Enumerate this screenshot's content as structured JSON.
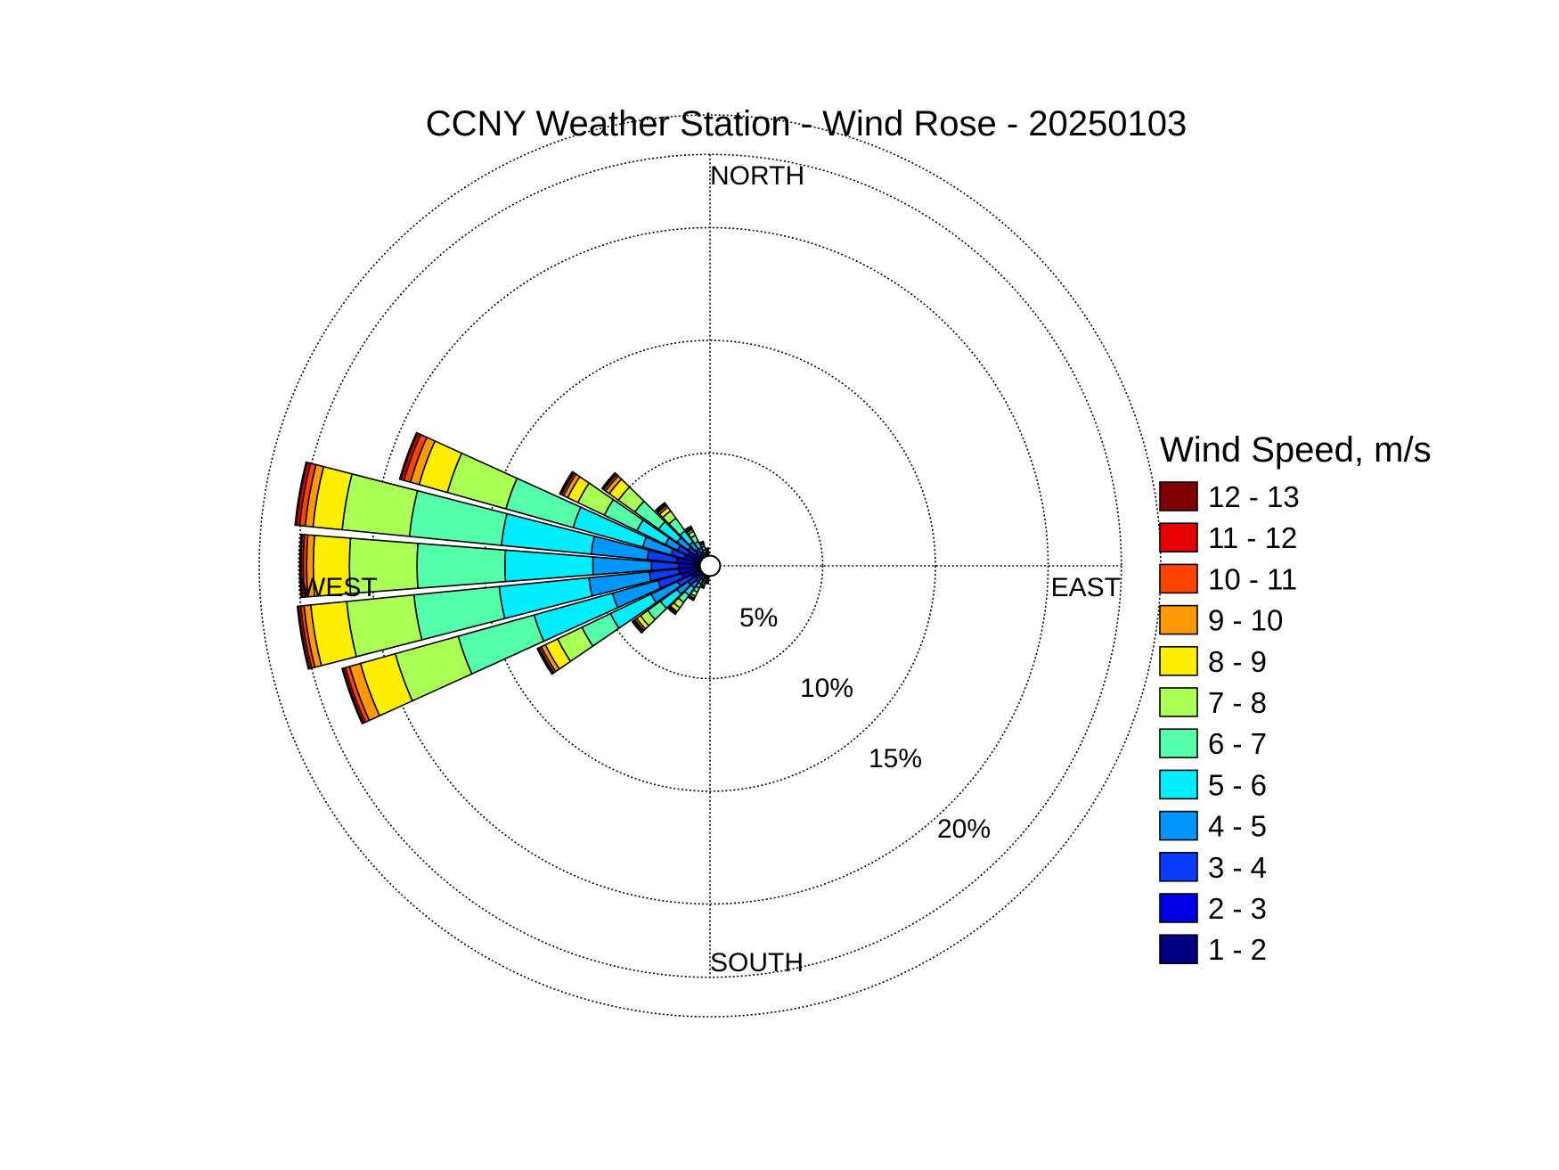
{
  "chart_data": {
    "type": "wind-rose",
    "title": "CCNY Weather Station - Wind Rose - 20250103",
    "direction_labels": {
      "north": "NORTH",
      "south": "SOUTH",
      "east": "EAST",
      "west": "WEST"
    },
    "radial_unit": "percent of time",
    "rings": [
      5,
      10,
      15,
      20
    ],
    "ring_labels": [
      "5%",
      "10%",
      "15%",
      "20%"
    ],
    "rmax": 18.25,
    "calm_radius": 0.45,
    "legend_title": "Wind Speed, m/s",
    "speed_bins": [
      {
        "label": "1 - 2",
        "color": "#000080"
      },
      {
        "label": "2 - 3",
        "color": "#0000e6"
      },
      {
        "label": "3 - 4",
        "color": "#0a3cff"
      },
      {
        "label": "4 - 5",
        "color": "#0096ff"
      },
      {
        "label": "5 - 6",
        "color": "#00eeff"
      },
      {
        "label": "6 - 7",
        "color": "#55ffaa"
      },
      {
        "label": "7 - 8",
        "color": "#aaff55"
      },
      {
        "label": "8 - 9",
        "color": "#ffee00"
      },
      {
        "label": "9 - 10",
        "color": "#ff9900"
      },
      {
        "label": "10 - 11",
        "color": "#ff4400"
      },
      {
        "label": "11 - 12",
        "color": "#e60000"
      },
      {
        "label": "12 - 13",
        "color": "#800000"
      }
    ],
    "sector_width_deg": 10,
    "sectors": [
      {
        "direction_deg": 300,
        "cumulative": [
          0.6,
          1.1,
          1.6,
          2.2,
          3.6,
          5.2,
          6.5,
          7.0,
          7.2,
          7.3,
          7.35,
          7.4
        ]
      },
      {
        "direction_deg": 290,
        "cumulative": [
          0.6,
          1.2,
          1.8,
          3.1,
          6.3,
          9.4,
          12.1,
          13.4,
          13.8,
          14.1,
          14.25,
          14.3
        ]
      },
      {
        "direction_deg": 280,
        "cumulative": [
          0.7,
          1.5,
          2.8,
          5.3,
          9.3,
          13.4,
          16.4,
          17.7,
          18.05,
          18.3,
          18.45,
          18.5
        ]
      },
      {
        "direction_deg": 270,
        "cumulative": [
          0.6,
          1.4,
          2.6,
          5.2,
          9.1,
          13.0,
          16.0,
          17.6,
          17.9,
          18.05,
          18.15,
          18.2
        ]
      },
      {
        "direction_deg": 260,
        "cumulative": [
          0.6,
          1.4,
          2.7,
          5.4,
          9.4,
          13.2,
          16.2,
          17.8,
          18.1,
          18.25,
          18.35,
          18.4
        ]
      },
      {
        "direction_deg": 250,
        "cumulative": [
          0.6,
          1.3,
          2.4,
          4.5,
          8.1,
          11.6,
          14.5,
          16.1,
          16.6,
          16.8,
          16.9,
          16.95
        ]
      },
      {
        "direction_deg": 240,
        "cumulative": [
          0.5,
          0.9,
          1.6,
          2.9,
          4.9,
          6.3,
          7.5,
          8.1,
          8.3,
          8.4,
          8.45,
          8.5
        ]
      },
      {
        "direction_deg": 230,
        "cumulative": [
          0.4,
          0.8,
          1.2,
          1.8,
          2.7,
          3.4,
          3.8,
          4.0,
          4.1,
          4.15,
          4.2,
          4.25
        ]
      },
      {
        "direction_deg": 220,
        "cumulative": [
          0.4,
          0.6,
          0.9,
          1.2,
          1.6,
          2.0,
          2.3,
          2.5,
          2.55,
          2.6,
          2.62,
          2.65
        ]
      },
      {
        "direction_deg": 210,
        "cumulative": [
          0.3,
          0.5,
          0.7,
          0.9,
          1.1,
          1.3,
          1.5,
          1.6,
          1.63,
          1.66,
          1.68,
          1.7
        ]
      },
      {
        "direction_deg": 200,
        "cumulative": [
          0.3,
          0.4,
          0.5,
          0.6,
          0.7,
          0.8,
          0.9,
          0.95,
          0.97,
          0.99,
          1.0,
          1.0
        ]
      },
      {
        "direction_deg": 310,
        "cumulative": [
          0.5,
          0.8,
          1.2,
          1.8,
          2.8,
          4.1,
          5.0,
          5.5,
          5.7,
          5.8,
          5.85,
          5.9
        ]
      },
      {
        "direction_deg": 320,
        "cumulative": [
          0.4,
          0.6,
          0.9,
          1.3,
          1.9,
          2.6,
          3.0,
          3.2,
          3.3,
          3.35,
          3.4,
          3.45
        ]
      },
      {
        "direction_deg": 330,
        "cumulative": [
          0.3,
          0.5,
          0.7,
          0.9,
          1.2,
          1.5,
          1.7,
          1.8,
          1.85,
          1.9,
          1.92,
          1.95
        ]
      },
      {
        "direction_deg": 340,
        "cumulative": [
          0.3,
          0.4,
          0.5,
          0.6,
          0.75,
          0.9,
          1.0,
          1.05,
          1.07,
          1.09,
          1.1,
          1.1
        ]
      },
      {
        "direction_deg": 350,
        "cumulative": [
          0.25,
          0.35,
          0.45,
          0.5,
          0.6,
          0.65,
          0.7,
          0.72,
          0.74,
          0.75,
          0.76,
          0.77
        ]
      },
      {
        "direction_deg": 190,
        "cumulative": [
          0.25,
          0.35,
          0.45,
          0.5,
          0.6,
          0.65,
          0.7,
          0.72,
          0.74,
          0.75,
          0.76,
          0.77
        ]
      }
    ]
  }
}
